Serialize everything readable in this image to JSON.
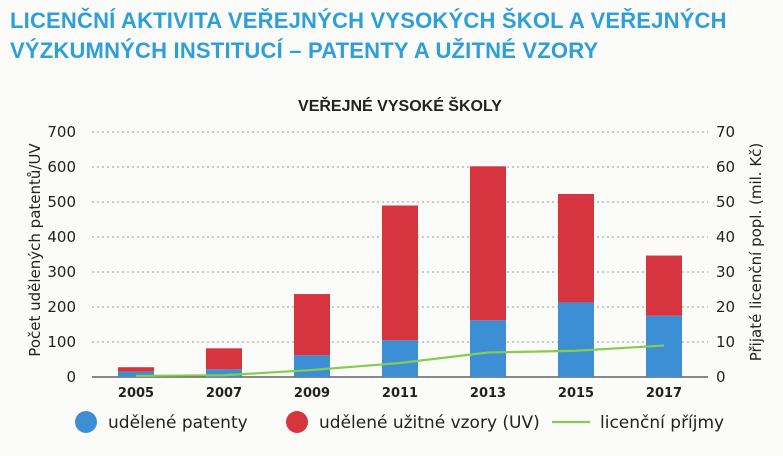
{
  "heading": {
    "line1": "LICENČNÍ AKTIVITA VEŘEJNÝCH VYSOKÝCH ŠKOL A VEŘEJNÝCH",
    "line2": "VÝZKUMNÝCH INSTITUCÍ – PATENTY A UŽITNÉ VZORY"
  },
  "chart_data": {
    "type": "bar",
    "stacked": true,
    "title": "VEŘEJNÉ VYSOKÉ ŠKOLY",
    "categories": [
      "2005",
      "2007",
      "2009",
      "2011",
      "2013",
      "2015",
      "2017"
    ],
    "ylabel": "Počet udělených patentů/UV",
    "y2label": "Přijaté licenční popl. (mil. Kč)",
    "ylim": [
      0,
      700
    ],
    "y2lim": [
      0,
      70
    ],
    "yticks": [
      "0",
      "100",
      "200",
      "300",
      "400",
      "500",
      "600",
      "700"
    ],
    "y2ticks": [
      "0",
      "10",
      "20",
      "30",
      "40",
      "50",
      "60",
      "70"
    ],
    "grid": true,
    "legend_position": "bottom",
    "series": [
      {
        "name": "udělené patenty",
        "kind": "bar",
        "color": "#3c8fd4",
        "values": [
          15,
          22,
          62,
          105,
          162,
          213,
          175
        ]
      },
      {
        "name": "udělené užitné vzory (UV)",
        "kind": "bar",
        "color": "#d6353f",
        "values": [
          13,
          60,
          175,
          385,
          440,
          310,
          172
        ]
      },
      {
        "name": "licenční příjmy",
        "kind": "line",
        "axis": "right",
        "color": "#86cc4e",
        "values": [
          0.3,
          0.5,
          2,
          4,
          7,
          7.5,
          9
        ]
      }
    ]
  }
}
